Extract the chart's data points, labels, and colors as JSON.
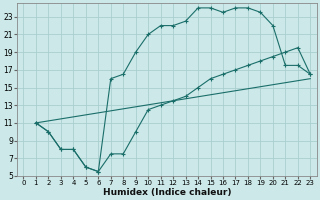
{
  "xlabel": "Humidex (Indice chaleur)",
  "bg_color": "#cce8e8",
  "grid_color": "#aacece",
  "line_color": "#1a6e6a",
  "xlim": [
    -0.5,
    23.5
  ],
  "ylim": [
    5,
    24.5
  ],
  "xticks": [
    0,
    1,
    2,
    3,
    4,
    5,
    6,
    7,
    8,
    9,
    10,
    11,
    12,
    13,
    14,
    15,
    16,
    17,
    18,
    19,
    20,
    21,
    22,
    23
  ],
  "yticks": [
    5,
    7,
    9,
    11,
    13,
    15,
    17,
    19,
    21,
    23
  ],
  "series_zigzag_x": [
    1,
    2,
    3,
    4,
    5,
    6,
    7,
    8,
    9,
    10,
    11,
    12,
    13,
    14,
    15,
    16,
    17,
    18,
    19,
    20,
    21,
    22,
    23
  ],
  "series_zigzag_y": [
    11,
    10,
    8,
    8,
    6,
    5.5,
    7.5,
    7.5,
    10,
    12.5,
    13,
    13.5,
    14,
    15,
    16,
    16.5,
    17,
    17.5,
    18,
    18.5,
    19,
    19.5,
    16.5
  ],
  "series_peak_x": [
    1,
    2,
    3,
    4,
    5,
    6,
    7,
    8,
    9,
    10,
    11,
    12,
    13,
    14,
    15,
    16,
    17,
    18,
    19,
    20,
    21,
    22,
    23
  ],
  "series_peak_y": [
    11,
    10,
    8,
    8,
    6,
    5.5,
    16,
    16.5,
    19,
    21,
    22,
    22,
    22.5,
    24,
    24,
    23.5,
    24,
    24,
    23.5,
    22,
    17.5,
    17.5,
    16.5
  ],
  "series_line_x": [
    1,
    23
  ],
  "series_line_y": [
    11,
    16
  ]
}
